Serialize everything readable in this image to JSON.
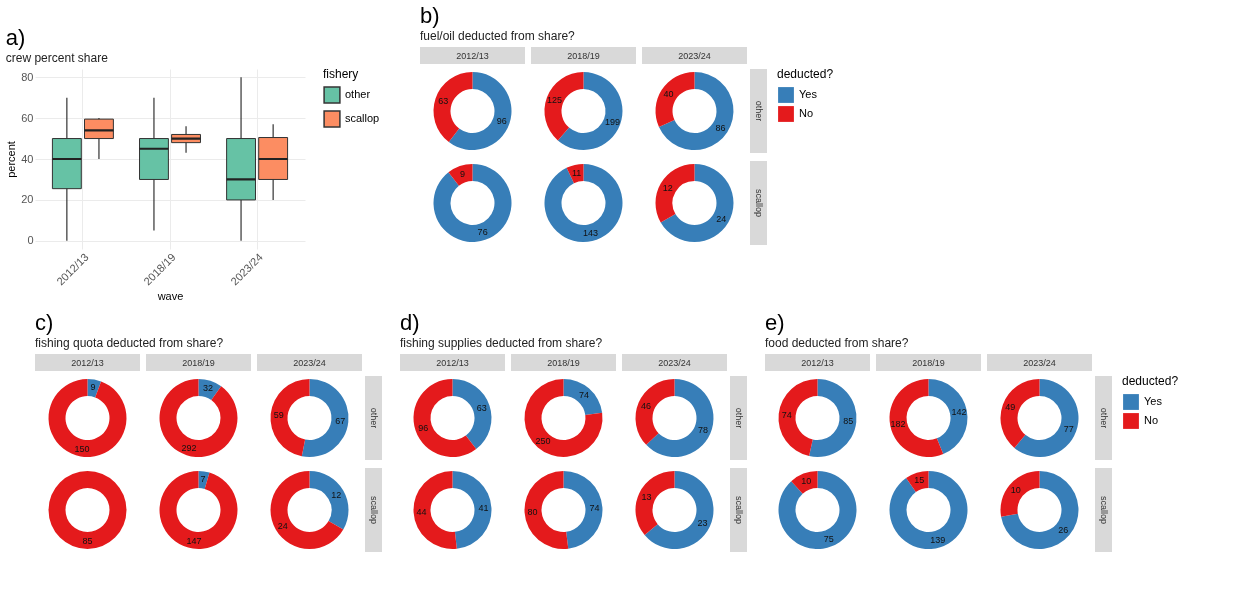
{
  "chart_data": [
    {
      "type": "box",
      "title": "crew percent share",
      "annotations": [
        "a)"
      ],
      "xlabel": "wave",
      "ylabel": "percent",
      "legend_title": "fishery",
      "legend": "right",
      "grid": true,
      "categories": [
        "2012/13",
        "2018/19",
        "2023/24"
      ],
      "ylim": [
        -4,
        84
      ],
      "yticks": [
        0,
        20,
        40,
        60,
        80
      ],
      "series": [
        {
          "name": "other",
          "color": "#66c2a5",
          "boxes": [
            {
              "low": 0,
              "q1": 25.5,
              "median": 40,
              "q3": 50,
              "high": 70
            },
            {
              "low": 5,
              "q1": 30,
              "median": 45,
              "q3": 50,
              "high": 70
            },
            {
              "low": 0,
              "q1": 20,
              "median": 30,
              "q3": 50,
              "high": 80
            }
          ]
        },
        {
          "name": "scallop",
          "color": "#fc8d62",
          "boxes": [
            {
              "low": 40,
              "q1": 50,
              "median": 54,
              "q3": 59.5,
              "high": 60
            },
            {
              "low": 43,
              "q1": 48,
              "median": 50,
              "q3": 52,
              "high": 56
            },
            {
              "low": 20,
              "q1": 30,
              "median": 40,
              "q3": 50.5,
              "high": 57
            }
          ]
        }
      ]
    },
    {
      "type": "donut",
      "title": "fuel/oil deducted from share?",
      "annotations": [
        "b)",
        "2012/13",
        "2018/19",
        "2023/24",
        "other",
        "scallop"
      ],
      "legend": "right",
      "legend_title": "deducted?",
      "data_labels": true,
      "categories": [
        "Yes",
        "No"
      ],
      "colors": [
        "#377eb8",
        "#e41a1c"
      ],
      "series": [
        {
          "values": [
            96,
            63
          ]
        },
        {
          "values": [
            199,
            125
          ]
        },
        {
          "values": [
            86,
            40
          ]
        },
        {
          "values": [
            76,
            9
          ]
        },
        {
          "values": [
            143,
            11
          ]
        },
        {
          "values": [
            24,
            12
          ]
        }
      ]
    },
    {
      "type": "donut",
      "title": "fishing quota deducted from share?",
      "annotations": [
        "c)",
        "2012/13",
        "2018/19",
        "2023/24",
        "other",
        "scallop"
      ],
      "categories": [
        null,
        null
      ],
      "colors": [
        "#377eb8",
        "#e41a1c"
      ],
      "series": [
        {
          "values": [
            9,
            150
          ],
          "value_labels": [
            "9",
            "150"
          ]
        },
        {
          "values": [
            32,
            292
          ],
          "value_labels": [
            "32",
            "292"
          ]
        },
        {
          "values": [
            67,
            59
          ],
          "value_labels": [
            "67",
            "59"
          ]
        },
        {
          "values": [
            0,
            85
          ],
          "value_labels": [
            null,
            "85"
          ]
        },
        {
          "values": [
            7,
            147
          ],
          "value_labels": [
            "7",
            "147"
          ]
        },
        {
          "values": [
            12,
            24
          ],
          "value_labels": [
            "12",
            "24"
          ]
        }
      ]
    },
    {
      "type": "donut",
      "title": "fishing supplies deducted from share?",
      "annotations": [
        "d)",
        "2012/13",
        "2018/19",
        "2023/24",
        "other",
        "scallop"
      ],
      "data_labels": true,
      "categories": [
        null,
        null
      ],
      "colors": [
        "#377eb8",
        "#e41a1c"
      ],
      "series": [
        {
          "values": [
            63,
            96
          ]
        },
        {
          "values": [
            74,
            250
          ]
        },
        {
          "values": [
            78,
            46
          ]
        },
        {
          "values": [
            41,
            44
          ]
        },
        {
          "values": [
            74,
            80
          ]
        },
        {
          "values": [
            23,
            13
          ]
        }
      ]
    },
    {
      "type": "donut",
      "title": "food deducted from share?",
      "annotations": [
        "e)",
        "2012/13",
        "2018/19",
        "2023/24",
        "other",
        "scallop"
      ],
      "legend": "right",
      "legend_title": "deducted?",
      "data_labels": true,
      "categories": [
        "Yes",
        "No"
      ],
      "colors": [
        "#377eb8",
        "#e41a1c"
      ],
      "series": [
        {
          "values": [
            85,
            74
          ]
        },
        {
          "values": [
            142,
            182
          ]
        },
        {
          "values": [
            77,
            49
          ]
        },
        {
          "values": [
            75,
            10
          ]
        },
        {
          "values": [
            139,
            15
          ]
        },
        {
          "values": [
            26,
            10
          ]
        }
      ]
    }
  ]
}
